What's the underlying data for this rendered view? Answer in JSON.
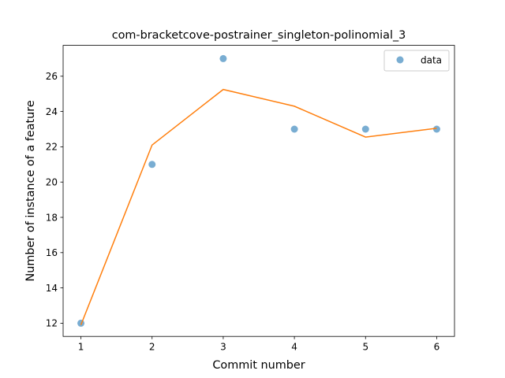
{
  "chart_data": {
    "type": "scatter",
    "title": "com-bracketcove-postrainer_singleton-polinomial_3",
    "xlabel": "Commit number",
    "ylabel": "Number of instance of a feature",
    "xlim": [
      0.75,
      6.25
    ],
    "ylim": [
      11.25,
      27.75
    ],
    "x_ticks": [
      1,
      2,
      3,
      4,
      5,
      6
    ],
    "y_ticks": [
      12,
      14,
      16,
      18,
      20,
      22,
      24,
      26
    ],
    "grid": false,
    "legend_position": "top-right",
    "series": [
      {
        "name": "data",
        "kind": "scatter",
        "color": "#1f77b4",
        "x": [
          1,
          2,
          3,
          4,
          5,
          6
        ],
        "y": [
          12,
          21,
          27,
          23,
          23,
          23
        ]
      },
      {
        "kind": "line",
        "color": "#ff7f0e",
        "x": [
          1,
          2,
          3,
          4,
          5,
          6
        ],
        "y": [
          11.9,
          22.1,
          25.25,
          24.3,
          22.55,
          23.05
        ]
      }
    ]
  }
}
